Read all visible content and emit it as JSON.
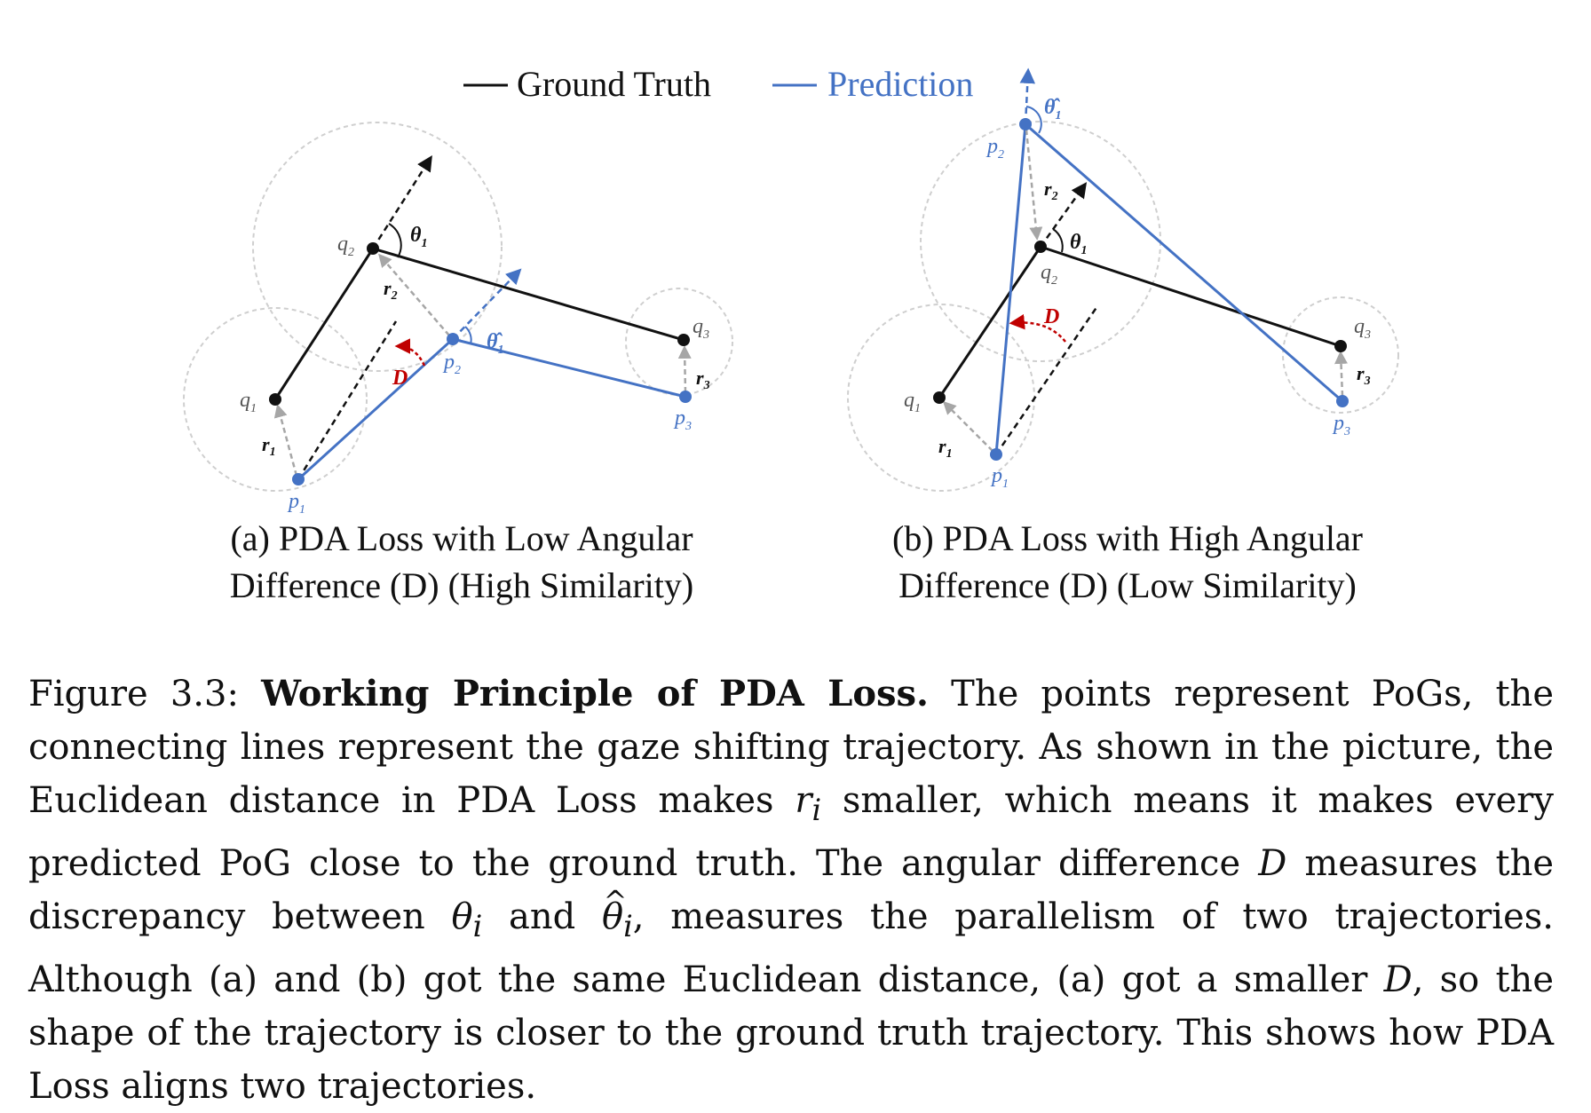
{
  "legend": {
    "ground_truth": "Ground Truth",
    "prediction": "Prediction"
  },
  "colors": {
    "ground_truth": "#111111",
    "prediction": "#4472c4",
    "angle_D": "#c00000",
    "circle": "#c8c8c8",
    "residual": "#a6a6a6"
  },
  "panel_a": {
    "caption_line1": "(a) PDA Loss with Low Angular",
    "caption_line2": "Difference (D) (High Similarity)",
    "labels": {
      "q1": "q",
      "q2": "q",
      "q3": "q",
      "p1": "p",
      "p2": "p",
      "p3": "p",
      "r1": "r",
      "r2": "r",
      "r3": "r",
      "theta": "θ",
      "theta_hat": "θ̂",
      "D": "D"
    }
  },
  "panel_b": {
    "caption_line1": "(b) PDA Loss with High Angular",
    "caption_line2": "Difference (D) (Low Similarity)",
    "labels": {
      "q1": "q",
      "q2": "q",
      "q3": "q",
      "p1": "p",
      "p2": "p",
      "p3": "p",
      "r1": "r",
      "r2": "r",
      "r3": "r",
      "theta": "θ",
      "theta_hat": "θ̂",
      "D": "D"
    }
  },
  "subscripts": {
    "one": "1",
    "two": "2",
    "three": "3"
  },
  "caption": {
    "prefix": "Figure 3.3: ",
    "bold": "Working Principle of PDA Loss.",
    "part1": " The points represent PoGs, the connecting lines represent the gaze shifting trajectory.  As shown in the picture, the Euclidean distance in PDA Loss makes ",
    "r_i": "r",
    "i": "i",
    "part2": " smaller, which means it makes every predicted PoG close to the ground truth.  The angular difference ",
    "D": "D",
    "part3": " measures the discrepancy between ",
    "theta": "θ",
    "part4": " and ",
    "theta_hat": "θ",
    "hat": "^",
    "part5": ", measures the parallelism of two trajectories.  Although (a) and (b) got the same Euclidean distance, (a) got a smaller ",
    "D2": "D",
    "part6": ", so the shape of the trajectory is closer to the ground truth trajectory. This shows how PDA Loss aligns two trajectories."
  }
}
